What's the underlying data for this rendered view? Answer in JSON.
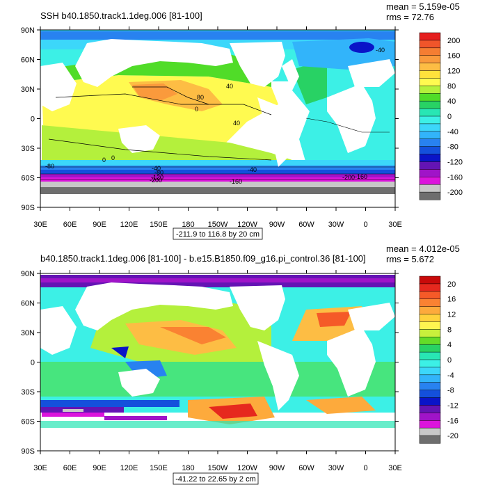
{
  "panels": [
    {
      "title": "SSH b40.1850.track1.1deg.006 [81-100]",
      "stats": {
        "mean": "mean = 5.159e-05",
        "rms": "rms = 72.76"
      },
      "range_label": "-211.9 to 116.8 by 20 cm",
      "colorbar": {
        "labels": [
          "200",
          "160",
          "120",
          "80",
          "40",
          "0",
          "-40",
          "-80",
          "-120",
          "-160",
          "-200"
        ],
        "colors": [
          "#e51e1e",
          "#f0552a",
          "#f57d32",
          "#fa9a3c",
          "#fdbd44",
          "#ffe23c",
          "#fffa50",
          "#b4f03c",
          "#50dc28",
          "#28d264",
          "#28e6b4",
          "#3cf0e6",
          "#3cd7fa",
          "#32b4fa",
          "#2882f0",
          "#1450dc",
          "#0a14c8",
          "#6414b4",
          "#a014c8",
          "#dc14dc",
          "#c8c8c8",
          "#6e6e6e"
        ]
      },
      "contour_labels": [
        "80",
        "40",
        "0",
        "40",
        "0",
        "-40",
        "-40",
        "-80",
        "-120",
        "-160",
        "-160",
        "-200",
        "-200",
        "0",
        "-40",
        "-80"
      ]
    },
    {
      "title": "b40.1850.track1.1deg.006 [81-100] - b.e15.B1850.f09_g16.pi_control.36 [81-100]",
      "stats": {
        "mean": "mean = 4.012e-05",
        "rms": "rms = 5.672"
      },
      "range_label": "-41.22 to 22.65 by 2 cm",
      "colorbar": {
        "labels": [
          "20",
          "16",
          "12",
          "8",
          "4",
          "0",
          "-4",
          "-8",
          "-12",
          "-16",
          "-20"
        ],
        "colors": [
          "#c80a0a",
          "#e6281e",
          "#f55a28",
          "#fa8232",
          "#fdaa3c",
          "#ffd23c",
          "#fff550",
          "#c8f03c",
          "#64dc28",
          "#28d264",
          "#28e6b4",
          "#3cf0e6",
          "#3cd7fa",
          "#32b4fa",
          "#2882f0",
          "#1450dc",
          "#0a14c8",
          "#6414b4",
          "#a014c8",
          "#dc14dc",
          "#c8c8c8",
          "#6e6e6e"
        ]
      }
    }
  ],
  "axes": {
    "lat_labels": [
      "90N",
      "60N",
      "30N",
      "0",
      "30S",
      "60S",
      "90S"
    ],
    "lon_labels": [
      "30E",
      "60E",
      "90E",
      "120E",
      "150E",
      "180",
      "150W",
      "120W",
      "90W",
      "60W",
      "30W",
      "0",
      "30E"
    ]
  }
}
